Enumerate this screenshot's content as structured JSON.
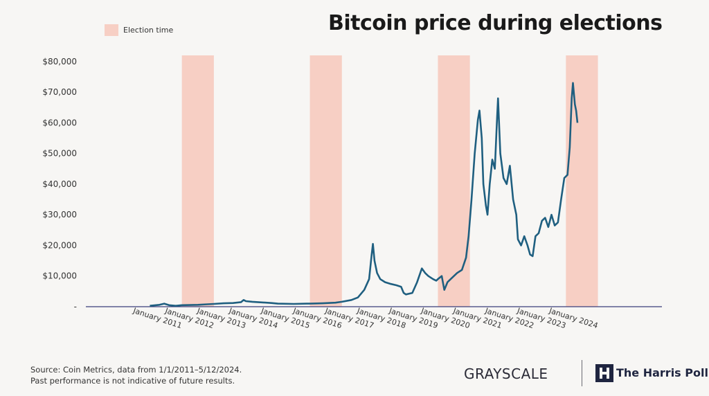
{
  "title": "Bitcoin price during elections",
  "legend": {
    "label": "Election time",
    "color": "#f7cfc4"
  },
  "footer": {
    "source": "Source: Coin Metrics, data from 1/1/2011–5/12/2024.",
    "disclaimer": "Past performance is not indicative of future results."
  },
  "brands": {
    "grayscale": "GRAYSCALE",
    "harris": "The Harris Poll"
  },
  "chart_data": {
    "type": "line",
    "x_type": "date",
    "line_color": "#1f5f80",
    "y_ticks": [
      {
        "value": 0,
        "label": "-"
      },
      {
        "value": 10000,
        "label": "$10,000"
      },
      {
        "value": 20000,
        "label": "$20,000"
      },
      {
        "value": 30000,
        "label": "$30,000"
      },
      {
        "value": 40000,
        "label": "$40,000"
      },
      {
        "value": 50000,
        "label": "$50,000"
      },
      {
        "value": 60000,
        "label": "$60,000"
      },
      {
        "value": 70000,
        "label": "$70,000"
      },
      {
        "value": 80000,
        "label": "$80,000"
      }
    ],
    "x_ticks": [
      {
        "value": 2011,
        "label": "January 2011"
      },
      {
        "value": 2012,
        "label": "January 2012"
      },
      {
        "value": 2013,
        "label": "January 2013"
      },
      {
        "value": 2014,
        "label": "January 2014"
      },
      {
        "value": 2015,
        "label": "January 2015"
      },
      {
        "value": 2016,
        "label": "January 2016"
      },
      {
        "value": 2017,
        "label": "January 2017"
      },
      {
        "value": 2018,
        "label": "January 2018"
      },
      {
        "value": 2019,
        "label": "January 2019"
      },
      {
        "value": 2020,
        "label": "January 2020"
      },
      {
        "value": 2021,
        "label": "January 2021"
      },
      {
        "value": 2022,
        "label": "January 2022"
      },
      {
        "value": 2023,
        "label": "January 2023"
      },
      {
        "value": 2024,
        "label": "January 2024"
      }
    ],
    "election_periods": [
      [
        2012.0,
        2013.0
      ],
      [
        2016.0,
        2017.0
      ],
      [
        2020.0,
        2021.0
      ],
      [
        2024.0,
        2025.0
      ]
    ],
    "ylim": [
      0,
      82000
    ],
    "xlim": [
      2009.0,
      2027.0
    ],
    "series": [
      {
        "points": [
          [
            2011.0,
            300
          ],
          [
            2011.3,
            600
          ],
          [
            2011.45,
            1000
          ],
          [
            2011.6,
            500
          ],
          [
            2011.8,
            300
          ],
          [
            2012.0,
            500
          ],
          [
            2012.5,
            600
          ],
          [
            2012.8,
            800
          ],
          [
            2013.0,
            900
          ],
          [
            2013.3,
            1100
          ],
          [
            2013.6,
            1200
          ],
          [
            2013.85,
            1500
          ],
          [
            2013.93,
            2200
          ],
          [
            2014.0,
            1800
          ],
          [
            2014.2,
            1600
          ],
          [
            2014.5,
            1400
          ],
          [
            2014.8,
            1200
          ],
          [
            2015.0,
            1000
          ],
          [
            2015.5,
            900
          ],
          [
            2015.9,
            1000
          ],
          [
            2016.0,
            1000
          ],
          [
            2016.4,
            1100
          ],
          [
            2016.8,
            1300
          ],
          [
            2017.0,
            1600
          ],
          [
            2017.3,
            2200
          ],
          [
            2017.5,
            3000
          ],
          [
            2017.7,
            5500
          ],
          [
            2017.85,
            9000
          ],
          [
            2017.93,
            17000
          ],
          [
            2017.97,
            20500
          ],
          [
            2018.02,
            15000
          ],
          [
            2018.1,
            11000
          ],
          [
            2018.2,
            9000
          ],
          [
            2018.35,
            8000
          ],
          [
            2018.5,
            7500
          ],
          [
            2018.7,
            7000
          ],
          [
            2018.85,
            6500
          ],
          [
            2018.93,
            4500
          ],
          [
            2019.0,
            4000
          ],
          [
            2019.2,
            4500
          ],
          [
            2019.35,
            8000
          ],
          [
            2019.5,
            12500
          ],
          [
            2019.6,
            11000
          ],
          [
            2019.7,
            10000
          ],
          [
            2019.85,
            9000
          ],
          [
            2019.95,
            8500
          ],
          [
            2020.0,
            9000
          ],
          [
            2020.12,
            10000
          ],
          [
            2020.2,
            5500
          ],
          [
            2020.3,
            8000
          ],
          [
            2020.45,
            9500
          ],
          [
            2020.6,
            11000
          ],
          [
            2020.75,
            12000
          ],
          [
            2020.88,
            16000
          ],
          [
            2020.96,
            23000
          ],
          [
            2021.05,
            35000
          ],
          [
            2021.15,
            50000
          ],
          [
            2021.25,
            61000
          ],
          [
            2021.3,
            64000
          ],
          [
            2021.37,
            55000
          ],
          [
            2021.42,
            40000
          ],
          [
            2021.5,
            33000
          ],
          [
            2021.55,
            30000
          ],
          [
            2021.62,
            40000
          ],
          [
            2021.7,
            48000
          ],
          [
            2021.78,
            45000
          ],
          [
            2021.85,
            62000
          ],
          [
            2021.88,
            68000
          ],
          [
            2021.95,
            50000
          ],
          [
            2022.05,
            42000
          ],
          [
            2022.15,
            40000
          ],
          [
            2022.25,
            46000
          ],
          [
            2022.35,
            35000
          ],
          [
            2022.45,
            30000
          ],
          [
            2022.5,
            22000
          ],
          [
            2022.6,
            20000
          ],
          [
            2022.7,
            23000
          ],
          [
            2022.8,
            20000
          ],
          [
            2022.88,
            17000
          ],
          [
            2022.96,
            16500
          ],
          [
            2023.05,
            23000
          ],
          [
            2023.15,
            24000
          ],
          [
            2023.25,
            28000
          ],
          [
            2023.35,
            29000
          ],
          [
            2023.45,
            26000
          ],
          [
            2023.55,
            30000
          ],
          [
            2023.65,
            26500
          ],
          [
            2023.75,
            27500
          ],
          [
            2023.85,
            35000
          ],
          [
            2023.95,
            42000
          ],
          [
            2024.05,
            43000
          ],
          [
            2024.12,
            52000
          ],
          [
            2024.18,
            68000
          ],
          [
            2024.22,
            73000
          ],
          [
            2024.28,
            66000
          ],
          [
            2024.32,
            64000
          ],
          [
            2024.36,
            60000
          ]
        ]
      }
    ]
  }
}
